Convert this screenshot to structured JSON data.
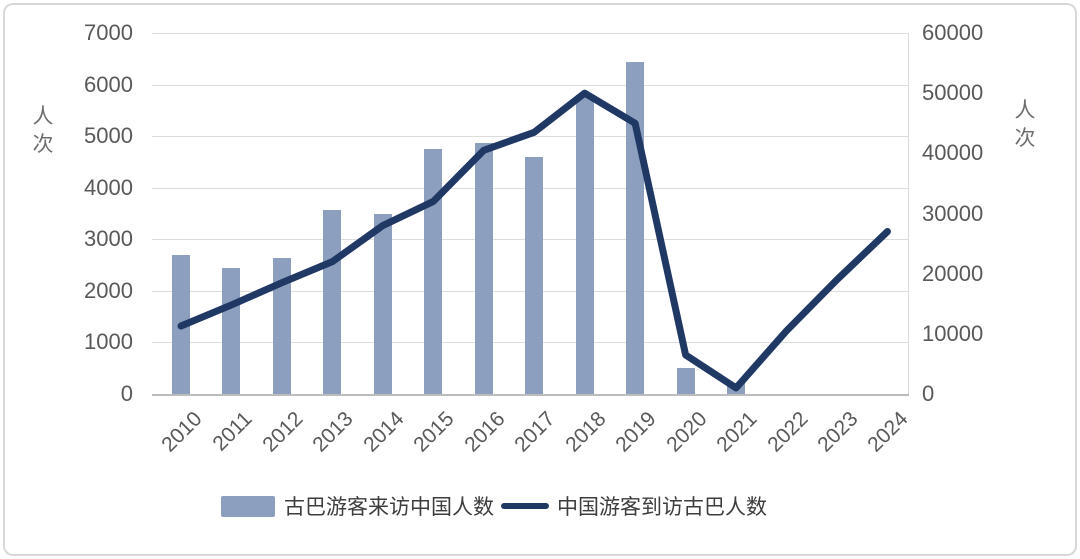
{
  "chart_data": {
    "type": "combo_bar_line",
    "title": "",
    "categories": [
      "2010",
      "2011",
      "2012",
      "2013",
      "2014",
      "2015",
      "2016",
      "2017",
      "2018",
      "2019",
      "2020",
      "2021",
      "2022",
      "2023",
      "2024"
    ],
    "series": [
      {
        "name": "古巴游客来访中国人数",
        "type": "bar",
        "axis": "left",
        "color": "#8c9fbe",
        "values": [
          2700,
          2450,
          2630,
          3560,
          3490,
          4760,
          4870,
          4600,
          5800,
          6440,
          500,
          210,
          null,
          null,
          null
        ]
      },
      {
        "name": "中国游客到访古巴人数",
        "type": "line",
        "axis": "right",
        "color": "#1f3864",
        "values": [
          11300,
          14800,
          18500,
          22000,
          28000,
          32000,
          40500,
          43500,
          50000,
          45000,
          6500,
          1000,
          10500,
          19000,
          27000
        ]
      }
    ],
    "left_axis": {
      "title": "人次",
      "min": 0,
      "max": 7000,
      "tick_step": 1000,
      "ticks": [
        "0",
        "1000",
        "2000",
        "3000",
        "4000",
        "5000",
        "6000",
        "7000"
      ]
    },
    "right_axis": {
      "title": "人次",
      "min": 0,
      "max": 60000,
      "tick_step": 10000,
      "ticks": [
        "0",
        "10000",
        "20000",
        "30000",
        "40000",
        "50000",
        "60000"
      ]
    },
    "grid": true,
    "legend_position": "bottom",
    "colors": {
      "grid": "#dcdcdc",
      "axis_line": "#bcbcbc",
      "tick_text": "#595959",
      "axis_title_text": "#6e6e6e",
      "legend_text": "#3d3d3d"
    }
  }
}
